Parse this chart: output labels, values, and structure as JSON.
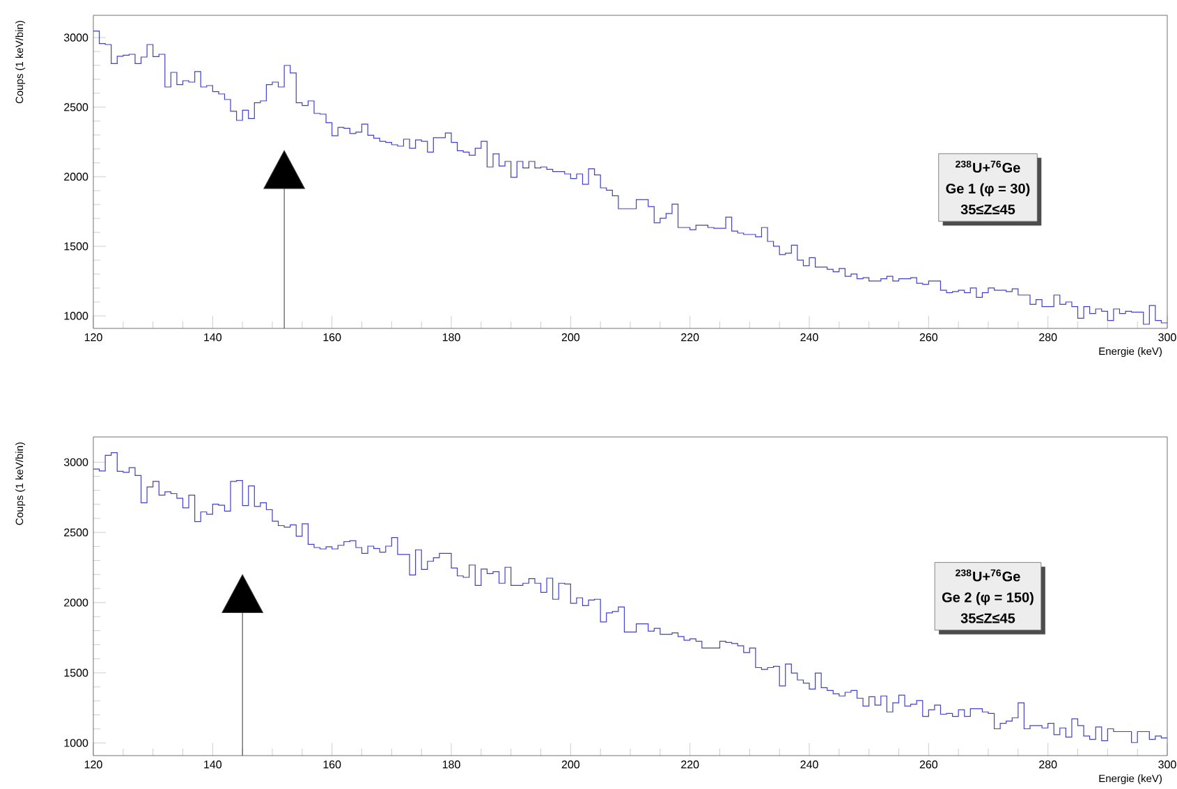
{
  "chart_data": [
    {
      "type": "histogram",
      "xlabel": "Energie (keV)",
      "ylabel": "Coups (1 keV/bin)",
      "color": "#4040c8",
      "bins": [
        120,
        121,
        122,
        123,
        124,
        125,
        126,
        127,
        128,
        129,
        130,
        131,
        132,
        133,
        134,
        135,
        136,
        137,
        138,
        139,
        140,
        141,
        142,
        143,
        144,
        145,
        146,
        147,
        148,
        149,
        150,
        151,
        152,
        153,
        154,
        155,
        156,
        157,
        158,
        159,
        160,
        161,
        162,
        163,
        164,
        165,
        166,
        167,
        168,
        169,
        170,
        171,
        172,
        173,
        174,
        175,
        176,
        177,
        178,
        179,
        180,
        181,
        182,
        183,
        184,
        185,
        186,
        187,
        188,
        189,
        190,
        191,
        192,
        193,
        194,
        195,
        196,
        197,
        198,
        199,
        200,
        201,
        202,
        203,
        204,
        205,
        206,
        207,
        208,
        209,
        210,
        211,
        212,
        213,
        214,
        215,
        216,
        217,
        218,
        219,
        220,
        221,
        222,
        223,
        224,
        225,
        226,
        227,
        228,
        229,
        230,
        231,
        232,
        233,
        234,
        235,
        236,
        237,
        238,
        239,
        240,
        241,
        242,
        243,
        244,
        245,
        246,
        247,
        248,
        249,
        250,
        251,
        252,
        253,
        254,
        255,
        256,
        257,
        258,
        259,
        260,
        261,
        262,
        263,
        264,
        265,
        266,
        267,
        268,
        269,
        270,
        271,
        272,
        273,
        274,
        275,
        276,
        277,
        278,
        279,
        280,
        281,
        282,
        283,
        284,
        285,
        286,
        287,
        288,
        289,
        290,
        291,
        292,
        293,
        294,
        295,
        296,
        297,
        298,
        299,
        300
      ],
      "values": [
        3047,
        2957,
        2950,
        2813,
        2866,
        2873,
        2880,
        2813,
        2860,
        2950,
        2863,
        2880,
        2645,
        2750,
        2662,
        2690,
        2680,
        2756,
        2645,
        2655,
        2612,
        2595,
        2555,
        2471,
        2405,
        2478,
        2418,
        2532,
        2545,
        2662,
        2680,
        2645,
        2800,
        2746,
        2532,
        2512,
        2545,
        2455,
        2450,
        2388,
        2294,
        2354,
        2348,
        2311,
        2321,
        2378,
        2298,
        2277,
        2254,
        2247,
        2230,
        2220,
        2270,
        2204,
        2264,
        2254,
        2177,
        2281,
        2281,
        2314,
        2247,
        2187,
        2177,
        2154,
        2204,
        2254,
        2070,
        2164,
        2077,
        2110,
        1996,
        2110,
        2063,
        2110,
        2063,
        2070,
        2053,
        2037,
        2037,
        2020,
        1987,
        2020,
        1946,
        2057,
        2013,
        1920,
        1903,
        1863,
        1770,
        1770,
        1770,
        1836,
        1836,
        1786,
        1669,
        1702,
        1736,
        1803,
        1635,
        1635,
        1619,
        1652,
        1652,
        1635,
        1629,
        1629,
        1709,
        1609,
        1595,
        1585,
        1585,
        1568,
        1635,
        1535,
        1501,
        1441,
        1451,
        1508,
        1401,
        1361,
        1418,
        1351,
        1351,
        1334,
        1317,
        1341,
        1284,
        1301,
        1267,
        1274,
        1251,
        1251,
        1267,
        1284,
        1251,
        1267,
        1267,
        1274,
        1234,
        1227,
        1251,
        1251,
        1184,
        1167,
        1174,
        1184,
        1167,
        1201,
        1133,
        1167,
        1201,
        1184,
        1184,
        1174,
        1194,
        1150,
        1150,
        1083,
        1117,
        1067,
        1067,
        1150,
        1083,
        1100,
        1067,
        983,
        1067,
        1017,
        1050,
        1033,
        967,
        1050,
        1017,
        1033,
        1027,
        1027,
        940,
        1074,
        967,
        950
      ],
      "xlim": [
        120,
        300
      ],
      "ylim": [
        910,
        3160
      ],
      "xticks": [
        120,
        140,
        160,
        180,
        200,
        220,
        240,
        260,
        280,
        300
      ],
      "yticks": [
        1000,
        1500,
        2000,
        2500,
        3000
      ],
      "annotations": [
        "$^{238}$U+$^{76}$Ge",
        "Ge 1 (φ = 30)",
        "35≤Z≤45"
      ],
      "ref_lines": [
        {
          "axis": "x",
          "value": 152
        }
      ]
    },
    {
      "type": "histogram",
      "xlabel": "Energie (keV)",
      "ylabel": "Coups (1 keV/bin)",
      "color": "#4040c8",
      "bins": [
        120,
        121,
        122,
        123,
        124,
        125,
        126,
        127,
        128,
        129,
        130,
        131,
        132,
        133,
        134,
        135,
        136,
        137,
        138,
        139,
        140,
        141,
        142,
        143,
        144,
        145,
        146,
        147,
        148,
        149,
        150,
        151,
        152,
        153,
        154,
        155,
        156,
        157,
        158,
        159,
        160,
        161,
        162,
        163,
        164,
        165,
        166,
        167,
        168,
        169,
        170,
        171,
        172,
        173,
        174,
        175,
        176,
        177,
        178,
        179,
        180,
        181,
        182,
        183,
        184,
        185,
        186,
        187,
        188,
        189,
        190,
        191,
        192,
        193,
        194,
        195,
        196,
        197,
        198,
        199,
        200,
        201,
        202,
        203,
        204,
        205,
        206,
        207,
        208,
        209,
        210,
        211,
        212,
        213,
        214,
        215,
        216,
        217,
        218,
        219,
        220,
        221,
        222,
        223,
        224,
        225,
        226,
        227,
        228,
        229,
        230,
        231,
        232,
        233,
        234,
        235,
        236,
        237,
        238,
        239,
        240,
        241,
        242,
        243,
        244,
        245,
        246,
        247,
        248,
        249,
        250,
        251,
        252,
        253,
        254,
        255,
        256,
        257,
        258,
        259,
        260,
        261,
        262,
        263,
        264,
        265,
        266,
        267,
        268,
        269,
        270,
        271,
        272,
        273,
        274,
        275,
        276,
        277,
        278,
        279,
        280,
        281,
        282,
        283,
        284,
        285,
        286,
        287,
        288,
        289,
        290,
        291,
        292,
        293,
        294,
        295,
        296,
        297,
        298,
        299,
        300
      ],
      "values": [
        2951,
        2938,
        3049,
        3068,
        2935,
        2928,
        2961,
        2906,
        2711,
        2824,
        2863,
        2766,
        2789,
        2776,
        2743,
        2675,
        2766,
        2577,
        2646,
        2629,
        2701,
        2694,
        2652,
        2863,
        2870,
        2691,
        2831,
        2685,
        2711,
        2662,
        2580,
        2548,
        2538,
        2554,
        2473,
        2561,
        2415,
        2392,
        2382,
        2398,
        2382,
        2408,
        2434,
        2441,
        2392,
        2350,
        2402,
        2385,
        2359,
        2402,
        2463,
        2343,
        2343,
        2197,
        2376,
        2236,
        2294,
        2320,
        2350,
        2350,
        2246,
        2190,
        2180,
        2268,
        2122,
        2239,
        2207,
        2220,
        2138,
        2252,
        2122,
        2122,
        2138,
        2171,
        2138,
        2073,
        2174,
        2024,
        2138,
        2132,
        1995,
        2034,
        1979,
        2018,
        2024,
        1862,
        1927,
        1937,
        1969,
        1790,
        1790,
        1849,
        1849,
        1797,
        1816,
        1774,
        1774,
        1784,
        1758,
        1732,
        1742,
        1725,
        1676,
        1676,
        1676,
        1725,
        1716,
        1709,
        1693,
        1644,
        1676,
        1537,
        1524,
        1537,
        1546,
        1406,
        1562,
        1498,
        1449,
        1426,
        1384,
        1498,
        1394,
        1374,
        1351,
        1335,
        1361,
        1374,
        1319,
        1263,
        1329,
        1270,
        1335,
        1221,
        1286,
        1341,
        1263,
        1276,
        1302,
        1189,
        1237,
        1270,
        1205,
        1211,
        1189,
        1237,
        1189,
        1244,
        1244,
        1221,
        1211,
        1101,
        1140,
        1156,
        1179,
        1286,
        1101,
        1124,
        1124,
        1107,
        1140,
        1059,
        1107,
        1042,
        1172,
        1124,
        1049,
        1026,
        1114,
        1016,
        1101,
        1081,
        1081,
        1081,
        1003,
        1081,
        1081,
        1026,
        1049,
        1036
      ],
      "xlim": [
        120,
        300
      ],
      "ylim": [
        910,
        3180
      ],
      "xticks": [
        120,
        140,
        160,
        180,
        200,
        220,
        240,
        260,
        280,
        300
      ],
      "yticks": [
        1000,
        1500,
        2000,
        2500,
        3000
      ],
      "annotations": [
        "$^{238}$U+$^{76}$Ge",
        "Ge 2 (φ = 150)",
        "35≤Z≤45"
      ],
      "ref_lines": [
        {
          "axis": "x",
          "value": 145
        }
      ]
    }
  ]
}
